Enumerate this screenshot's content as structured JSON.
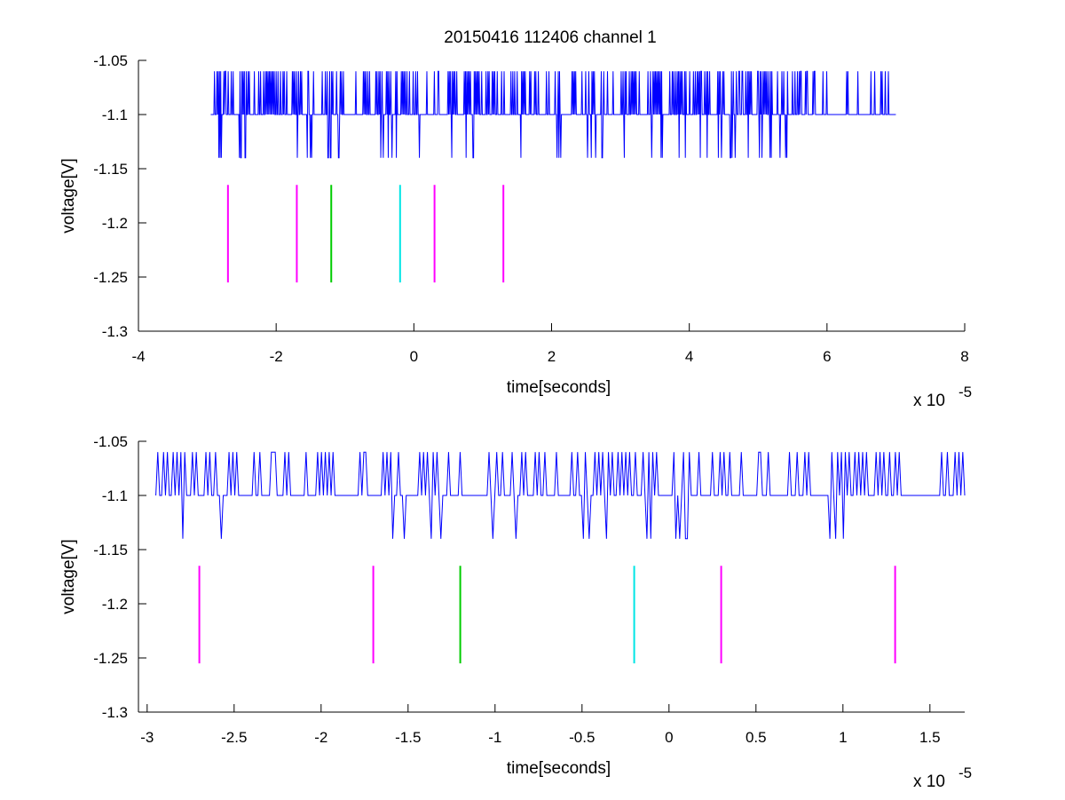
{
  "figure": {
    "title": "20150416 112406 channel 1",
    "background": "#ffffff",
    "signal_color": "#0000ff"
  },
  "chart_data": [
    {
      "type": "line",
      "title": "20150416 112406 channel 1",
      "xlabel": "time[seconds]",
      "ylabel": "voltage[V]",
      "x_exponent_label": "x 10",
      "x_exponent": "-5",
      "x_scale_factor": 1e-05,
      "xlim": [
        -4,
        8
      ],
      "ylim": [
        -1.3,
        -1.05
      ],
      "x_ticks": [
        -4,
        -2,
        0,
        2,
        4,
        6,
        8
      ],
      "x_tick_labels": [
        "-4",
        "-2",
        "0",
        "2",
        "4",
        "6",
        "8"
      ],
      "y_ticks": [
        -1.05,
        -1.1,
        -1.15,
        -1.2,
        -1.25,
        -1.3
      ],
      "y_tick_labels": [
        "-1.05",
        "-1.1",
        "-1.15",
        "-1.2",
        "-1.25",
        "-1.3"
      ],
      "grid": false,
      "signal": {
        "x_start": -2.95,
        "x_end": 7.0,
        "levels": [
          -1.06,
          -1.1,
          -1.14
        ],
        "color": "#0000ff"
      },
      "markers": [
        {
          "x": -2.7,
          "y_top": -1.165,
          "y_bottom": -1.255,
          "color": "#ff00ff"
        },
        {
          "x": -1.7,
          "y_top": -1.165,
          "y_bottom": -1.255,
          "color": "#ff00ff"
        },
        {
          "x": -1.2,
          "y_top": -1.165,
          "y_bottom": -1.255,
          "color": "#00cc00"
        },
        {
          "x": -0.2,
          "y_top": -1.165,
          "y_bottom": -1.255,
          "color": "#00e5e5"
        },
        {
          "x": 0.3,
          "y_top": -1.165,
          "y_bottom": -1.255,
          "color": "#ff00ff"
        },
        {
          "x": 1.3,
          "y_top": -1.165,
          "y_bottom": -1.255,
          "color": "#ff00ff"
        }
      ]
    },
    {
      "type": "line",
      "title": "",
      "xlabel": "time[seconds]",
      "ylabel": "voltage[V]",
      "x_exponent_label": "x 10",
      "x_exponent": "-5",
      "x_scale_factor": 1e-05,
      "xlim": [
        -3.05,
        1.7
      ],
      "ylim": [
        -1.3,
        -1.05
      ],
      "x_ticks": [
        -3,
        -2.5,
        -2,
        -1.5,
        -1,
        -0.5,
        0,
        0.5,
        1,
        1.5
      ],
      "x_tick_labels": [
        "-3",
        "-2.5",
        "-2",
        "-1.5",
        "-1",
        "-0.5",
        "0",
        "0.5",
        "1",
        "1.5"
      ],
      "y_ticks": [
        -1.05,
        -1.1,
        -1.15,
        -1.2,
        -1.25,
        -1.3
      ],
      "y_tick_labels": [
        "-1.05",
        "-1.1",
        "-1.15",
        "-1.2",
        "-1.25",
        "-1.3"
      ],
      "grid": false,
      "signal": {
        "x_start": -2.95,
        "x_end": 1.7,
        "levels": [
          -1.06,
          -1.1,
          -1.14
        ],
        "color": "#0000ff"
      },
      "markers": [
        {
          "x": -2.7,
          "y_top": -1.165,
          "y_bottom": -1.255,
          "color": "#ff00ff"
        },
        {
          "x": -1.7,
          "y_top": -1.165,
          "y_bottom": -1.255,
          "color": "#ff00ff"
        },
        {
          "x": -1.2,
          "y_top": -1.165,
          "y_bottom": -1.255,
          "color": "#00cc00"
        },
        {
          "x": -0.2,
          "y_top": -1.165,
          "y_bottom": -1.255,
          "color": "#00e5e5"
        },
        {
          "x": 0.3,
          "y_top": -1.165,
          "y_bottom": -1.255,
          "color": "#ff00ff"
        },
        {
          "x": 1.3,
          "y_top": -1.165,
          "y_bottom": -1.255,
          "color": "#ff00ff"
        }
      ]
    }
  ]
}
